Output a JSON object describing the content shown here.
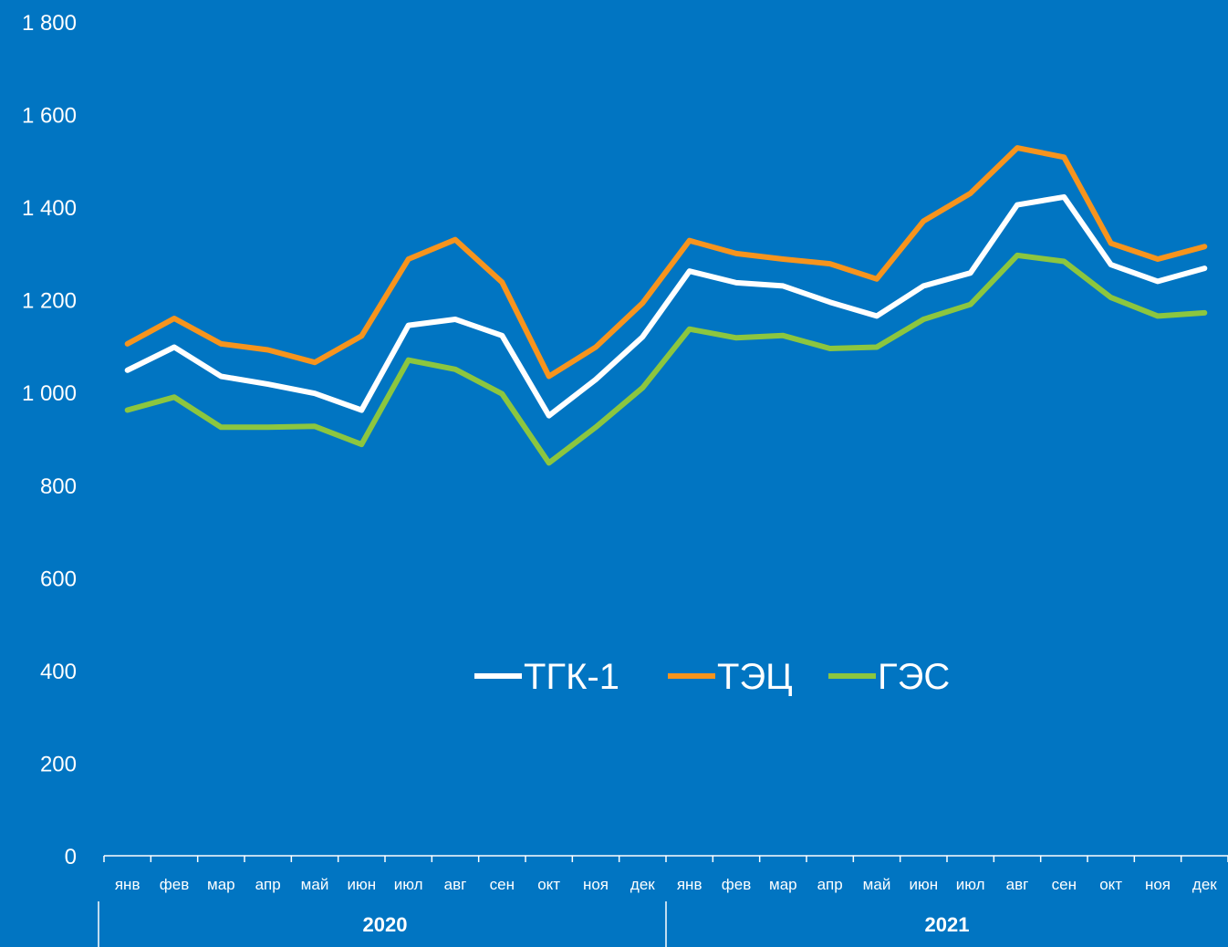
{
  "colors": {
    "background": "#0175c2",
    "axis": "#ffffff",
    "tgk1": "#ffffff",
    "tec": "#f7941d",
    "ges": "#8cc63f"
  },
  "chart_data": {
    "type": "line",
    "title": "",
    "xlabel": "",
    "ylabel": "",
    "ylim": [
      0,
      1800
    ],
    "yticks": [
      "0",
      "200",
      "400",
      "600",
      "800",
      "1 000",
      "1 200",
      "1 400",
      "1 600",
      "1 800"
    ],
    "grid": false,
    "legend_position": "center",
    "categories": [
      "янв",
      "фев",
      "мар",
      "апр",
      "май",
      "июн",
      "июл",
      "авг",
      "сен",
      "окт",
      "ноя",
      "дек",
      "янв",
      "фев",
      "мар",
      "апр",
      "май",
      "июн",
      "июл",
      "авг",
      "сен",
      "окт",
      "ноя",
      "дек"
    ],
    "groups": [
      {
        "label": "2020",
        "count": 12
      },
      {
        "label": "2021",
        "count": 12
      }
    ],
    "series": [
      {
        "name": "ТГК-1",
        "color": "#ffffff",
        "values": [
          1048,
          1098,
          1035,
          1018,
          998,
          962,
          1145,
          1158,
          1123,
          950,
          1028,
          1120,
          1262,
          1237,
          1230,
          1195,
          1165,
          1230,
          1258,
          1405,
          1422,
          1276,
          1240,
          1268
        ]
      },
      {
        "name": "ТЭЦ",
        "color": "#f7941d",
        "values": [
          1105,
          1160,
          1105,
          1092,
          1065,
          1122,
          1288,
          1330,
          1238,
          1035,
          1098,
          1193,
          1328,
          1300,
          1288,
          1278,
          1245,
          1370,
          1430,
          1528,
          1508,
          1322,
          1288,
          1315
        ]
      },
      {
        "name": "ГЭС",
        "color": "#8cc63f",
        "values": [
          962,
          990,
          925,
          925,
          927,
          888,
          1070,
          1050,
          997,
          848,
          925,
          1010,
          1137,
          1118,
          1123,
          1095,
          1098,
          1158,
          1190,
          1296,
          1283,
          1205,
          1165,
          1172
        ]
      }
    ]
  }
}
